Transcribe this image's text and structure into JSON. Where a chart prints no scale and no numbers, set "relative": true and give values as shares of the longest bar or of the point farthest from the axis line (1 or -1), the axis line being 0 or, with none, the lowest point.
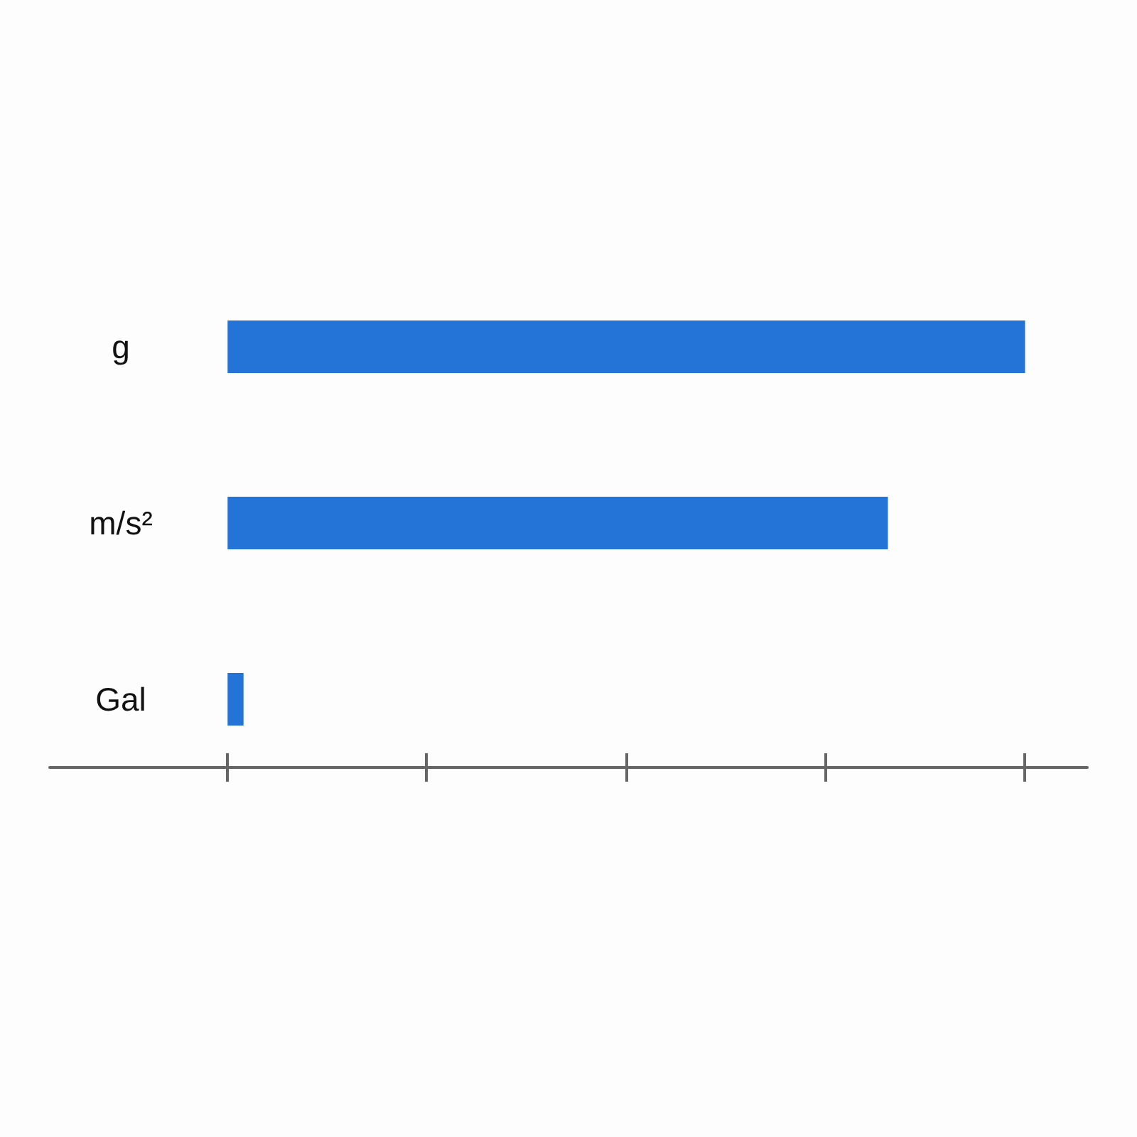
{
  "chart_data": {
    "type": "bar",
    "orientation": "horizontal",
    "relative": true,
    "categories": [
      "g",
      "m/s²",
      "Gal"
    ],
    "values": [
      1,
      0.828,
      0.02
    ],
    "color": "#2473d6"
  }
}
